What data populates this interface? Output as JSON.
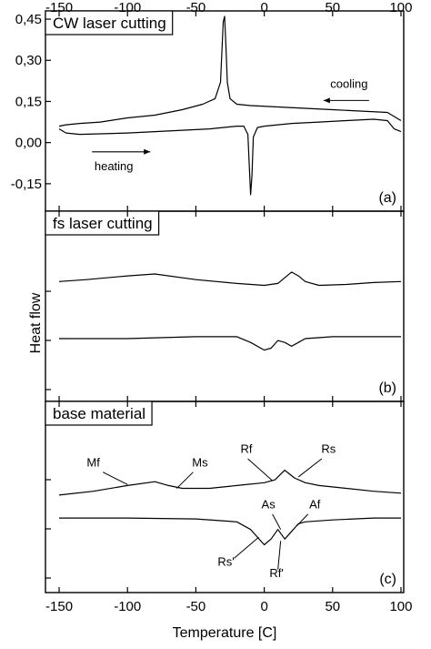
{
  "figure": {
    "xlabel": "Temperature [C]",
    "ylabel": "Heat flow"
  },
  "chart_data": [
    {
      "type": "line",
      "panel": "(a)",
      "title": "CW laser cutting",
      "xlim": [
        -160,
        102
      ],
      "ylim": [
        -0.25,
        0.48
      ],
      "x_ticks": [
        -150,
        -100,
        -50,
        0,
        50,
        100
      ],
      "y_ticks": [
        -0.15,
        0.0,
        0.15,
        0.3,
        0.45
      ],
      "y_tick_labels": [
        "-0,15",
        "0,00",
        "0,15",
        "0,30",
        "0,45"
      ],
      "annotations": [
        {
          "text": "cooling",
          "x": 62,
          "y": 0.2,
          "arrow": "left"
        },
        {
          "text": "heating",
          "x": -110,
          "y": -0.1,
          "arrow": "right"
        }
      ],
      "series": [
        {
          "segment": "cooling",
          "x": [
            100,
            90,
            70,
            50,
            30,
            10,
            -10,
            -20,
            -25,
            -27,
            -28,
            -29,
            -30,
            -32,
            -36,
            -45,
            -60,
            -80,
            -100,
            -120,
            -135,
            -145,
            -150
          ],
          "y": [
            0.08,
            0.11,
            0.115,
            0.12,
            0.125,
            0.13,
            0.135,
            0.14,
            0.16,
            0.22,
            0.35,
            0.46,
            0.44,
            0.22,
            0.16,
            0.14,
            0.12,
            0.1,
            0.09,
            0.075,
            0.07,
            0.065,
            0.06
          ]
        },
        {
          "segment": "heating",
          "x": [
            -150,
            -145,
            -135,
            -120,
            -100,
            -80,
            -60,
            -40,
            -20,
            -15,
            -12,
            -11,
            -10,
            -9,
            -8,
            -5,
            0,
            20,
            40,
            60,
            80,
            90,
            95,
            100
          ],
          "y": [
            0.05,
            0.035,
            0.03,
            0.032,
            0.035,
            0.04,
            0.045,
            0.05,
            0.06,
            0.06,
            0.03,
            -0.08,
            -0.19,
            -0.12,
            0.02,
            0.055,
            0.06,
            0.07,
            0.075,
            0.08,
            0.085,
            0.08,
            0.05,
            0.04
          ]
        }
      ]
    },
    {
      "type": "line",
      "panel": "(b)",
      "title": "fs laser cutting",
      "xlim": [
        -160,
        102
      ],
      "ylim": [
        0,
        1
      ],
      "x_ticks": [
        -150,
        -100,
        -50,
        0,
        50,
        100
      ],
      "y_ticks": [],
      "series": [
        {
          "segment": "cooling",
          "x": [
            100,
            80,
            60,
            40,
            30,
            25,
            20,
            15,
            10,
            0,
            -20,
            -50,
            -80,
            -100,
            -130,
            -150
          ],
          "y": [
            0.63,
            0.625,
            0.615,
            0.61,
            0.63,
            0.66,
            0.68,
            0.65,
            0.62,
            0.61,
            0.62,
            0.64,
            0.67,
            0.66,
            0.64,
            0.63
          ]
        },
        {
          "segment": "heating",
          "x": [
            -150,
            -100,
            -50,
            -20,
            -10,
            0,
            5,
            10,
            15,
            20,
            25,
            30,
            50,
            80,
            100
          ],
          "y": [
            0.33,
            0.33,
            0.34,
            0.34,
            0.31,
            0.27,
            0.28,
            0.32,
            0.31,
            0.29,
            0.31,
            0.33,
            0.34,
            0.34,
            0.34
          ]
        }
      ]
    },
    {
      "type": "line",
      "panel": "(c)",
      "title": "base material",
      "xlim": [
        -160,
        102
      ],
      "ylim": [
        0,
        1
      ],
      "x_ticks": [
        -150,
        -100,
        -50,
        0,
        50,
        100
      ],
      "y_ticks": [],
      "annotations": [
        {
          "text": "Mf",
          "x": -125,
          "y": 0.66
        },
        {
          "text": "Ms",
          "x": -47,
          "y": 0.66
        },
        {
          "text": "Rf",
          "x": -13,
          "y": 0.73
        },
        {
          "text": "Rs",
          "x": 47,
          "y": 0.73
        },
        {
          "text": "As",
          "x": 3,
          "y": 0.44
        },
        {
          "text": "Af",
          "x": 37,
          "y": 0.44
        },
        {
          "text": "Rs'",
          "x": -28,
          "y": 0.14
        },
        {
          "text": "Rf'",
          "x": 9,
          "y": 0.08
        }
      ],
      "series": [
        {
          "segment": "cooling",
          "x": [
            100,
            80,
            60,
            40,
            30,
            22,
            15,
            12,
            8,
            0,
            -20,
            -40,
            -60,
            -70,
            -80,
            -100,
            -125,
            -150
          ],
          "y": [
            0.52,
            0.53,
            0.545,
            0.56,
            0.575,
            0.6,
            0.64,
            0.62,
            0.59,
            0.575,
            0.56,
            0.545,
            0.545,
            0.56,
            0.58,
            0.56,
            0.53,
            0.51
          ]
        },
        {
          "segment": "heating",
          "x": [
            -150,
            -100,
            -50,
            -20,
            -10,
            -5,
            0,
            5,
            10,
            15,
            20,
            25,
            30,
            50,
            80,
            100
          ],
          "y": [
            0.39,
            0.39,
            0.385,
            0.37,
            0.33,
            0.29,
            0.25,
            0.28,
            0.33,
            0.28,
            0.32,
            0.36,
            0.37,
            0.38,
            0.39,
            0.39
          ]
        }
      ]
    }
  ]
}
